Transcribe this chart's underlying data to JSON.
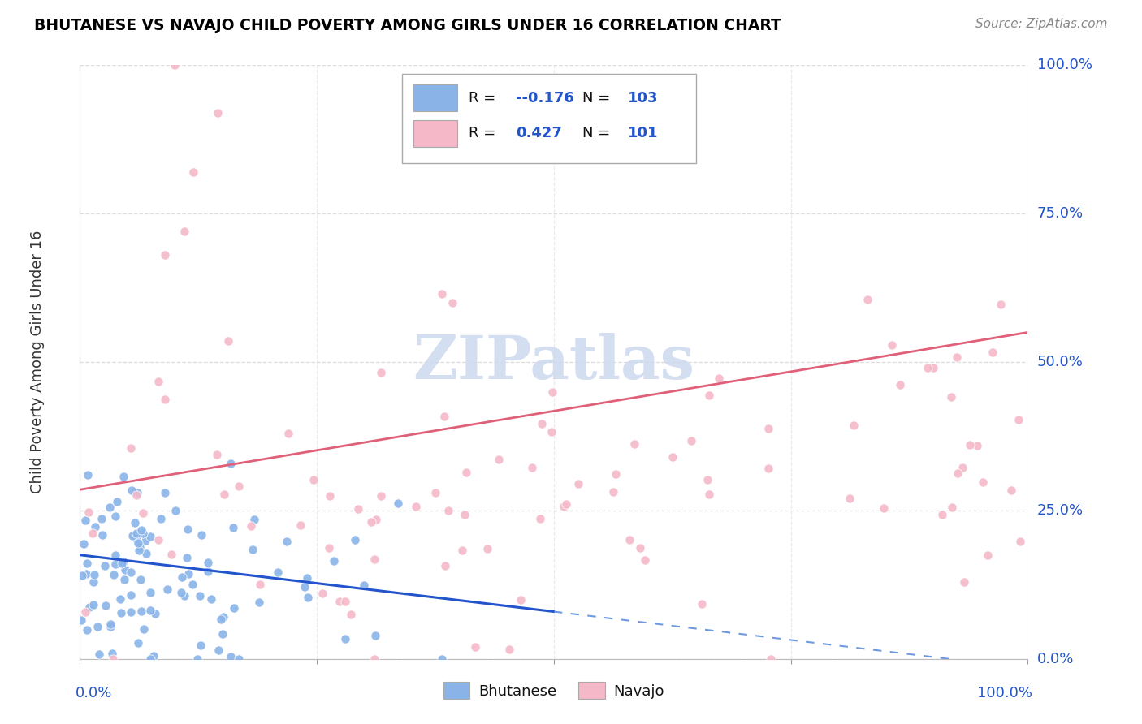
{
  "title": "BHUTANESE VS NAVAJO CHILD POVERTY AMONG GIRLS UNDER 16 CORRELATION CHART",
  "source": "Source: ZipAtlas.com",
  "ylabel": "Child Poverty Among Girls Under 16",
  "ytick_labels": [
    "0.0%",
    "25.0%",
    "50.0%",
    "75.0%",
    "100.0%"
  ],
  "ytick_values": [
    0.0,
    0.25,
    0.5,
    0.75,
    1.0
  ],
  "xtick_values": [
    0.0,
    0.25,
    0.5,
    0.75,
    1.0
  ],
  "watermark": "ZIPatlas",
  "legend_r_blue": "-0.176",
  "legend_n_blue": "103",
  "legend_r_pink": "0.427",
  "legend_n_pink": "101",
  "blue_scatter_color": "#8ab4e8",
  "pink_scatter_color": "#f4b8c8",
  "trend_blue_solid_color": "#2255cc",
  "trend_blue_dash_color": "#5588dd",
  "trend_pink_color": "#e0607a",
  "blue_R": -0.176,
  "pink_R": 0.427,
  "blue_N": 103,
  "pink_N": 101,
  "background_color": "#ffffff",
  "grid_color": "#dddddd",
  "title_color": "#000000",
  "axis_label_color": "#2255cc",
  "watermark_color": "#ccd9ee",
  "legend_box_edge": "#aaaaaa",
  "legend_text_blue": "#2255cc",
  "ylabel_color": "#333333"
}
